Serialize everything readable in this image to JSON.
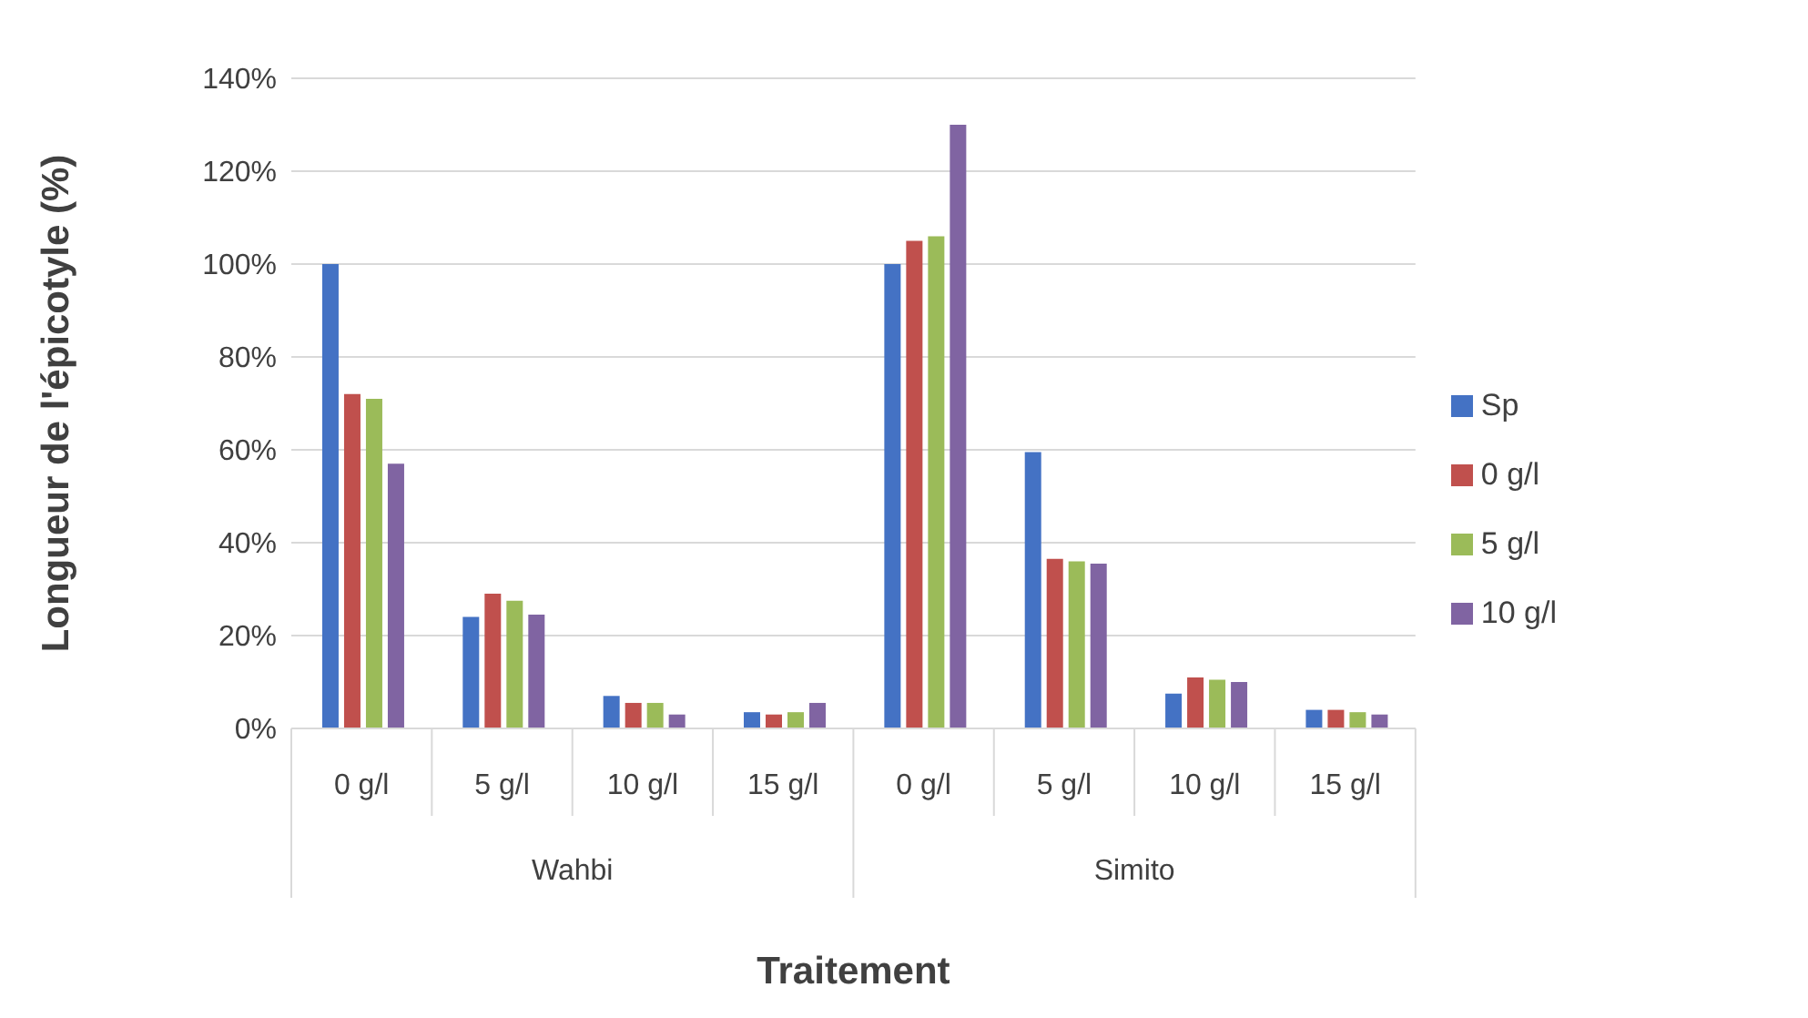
{
  "chart_data": {
    "type": "bar",
    "xlabel": "Traitement",
    "ylabel": "Longueur de l'épicotyle (%)",
    "categories": [
      "0 g/l",
      "5 g/l",
      "10 g/l",
      "15 g/l",
      "0 g/l",
      "5 g/l",
      "10 g/l",
      "15 g/l"
    ],
    "annotations": [
      "Wahbi",
      "Simito"
    ],
    "series": [
      {
        "name": "Sp",
        "color": "#4472c4",
        "values": [
          100,
          24,
          7,
          3.5,
          100,
          59.5,
          7.5,
          4
        ]
      },
      {
        "name": "0 g/l",
        "color": "#c0504d",
        "values": [
          72,
          29,
          5.5,
          3,
          105,
          36.5,
          11,
          4
        ]
      },
      {
        "name": "5 g/l",
        "color": "#9bbb59",
        "values": [
          71,
          27.5,
          5.5,
          3.5,
          106,
          36,
          10.5,
          3.5
        ]
      },
      {
        "name": "10 g/l",
        "color": "#8064a2",
        "values": [
          57,
          24.5,
          3,
          5.5,
          130,
          35.5,
          10,
          3
        ]
      }
    ],
    "ylim": [
      0,
      140
    ],
    "yticks": [
      {
        "value": 0,
        "label": "0%"
      },
      {
        "value": 20,
        "label": "20%"
      },
      {
        "value": 40,
        "label": "40%"
      },
      {
        "value": 60,
        "label": "60%"
      },
      {
        "value": 80,
        "label": "80%"
      },
      {
        "value": 100,
        "label": "100%"
      },
      {
        "value": 120,
        "label": "120%"
      },
      {
        "value": 140,
        "label": "140%"
      }
    ],
    "grid": "y",
    "legend": "right"
  }
}
